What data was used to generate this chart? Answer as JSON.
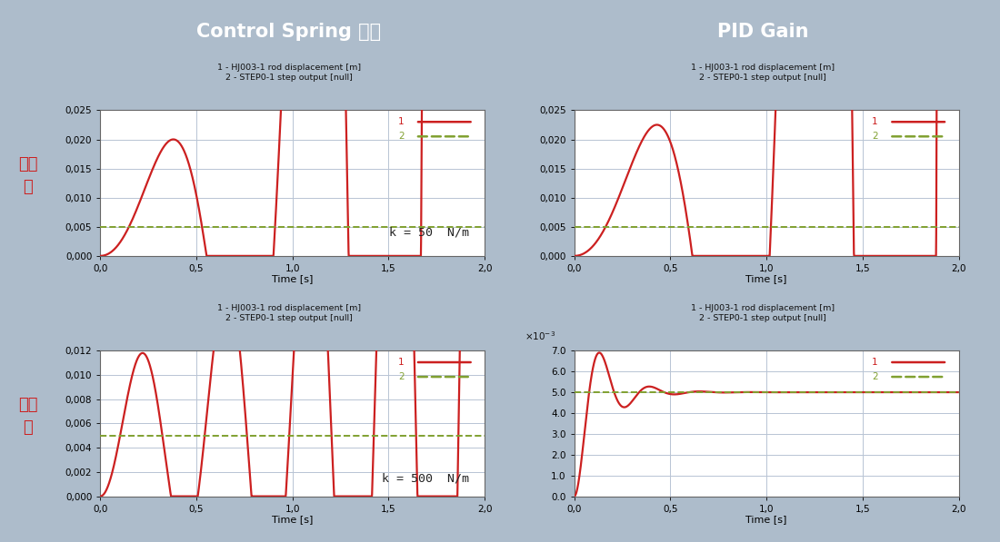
{
  "header_bg": "#3a5f8a",
  "header_text_color": "#ffffff",
  "col1_header": "Control Spring 상수",
  "col2_header": "PID Gain",
  "row1_label": "변경\n전",
  "row2_label": "변경\n후",
  "outer_bg": "#adbccb",
  "plot_bg": "#c8d4e0",
  "chart_bg": "#ffffff",
  "grid_color": "#b8c4d4",
  "red_color": "#cc2020",
  "green_color": "#80a030",
  "title_line1": "1 - HJ003-1 rod displacement [m]",
  "title_line2": "2 - STEP0-1 step output [null]",
  "xlabel": "Time [s]",
  "annotation_tl": "k = 50  N/m",
  "annotation_bl": "k = 500  N/m",
  "panel_tl": {
    "ylim": [
      0.0,
      0.025
    ],
    "yticks": [
      0.0,
      0.005,
      0.01,
      0.015,
      0.02,
      0.025
    ],
    "peak": 0.02,
    "peak_t": 0.38,
    "steady": 0.005,
    "sigma": 3.5,
    "omega": 5.5
  },
  "panel_tr": {
    "ylim": [
      0.0,
      0.025
    ],
    "yticks": [
      0.0,
      0.005,
      0.01,
      0.015,
      0.02,
      0.025
    ],
    "peak": 0.0225,
    "peak_t": 0.43,
    "steady": 0.005,
    "sigma": 4.5,
    "omega": 4.8
  },
  "panel_bl": {
    "ylim": [
      0.0,
      0.012
    ],
    "yticks": [
      0.0,
      0.002,
      0.004,
      0.006,
      0.008,
      0.01,
      0.012
    ],
    "peak": 0.0118,
    "peak_t": 0.22,
    "steady": 0.005,
    "sigma": 5.0,
    "omega": 9.5
  },
  "panel_br": {
    "ylim_scale": 0.001,
    "ylim": [
      0.0,
      7.0
    ],
    "yticks": [
      0.0,
      1.0,
      2.0,
      3.0,
      4.0,
      5.0,
      6.0,
      7.0
    ],
    "peak": 6.9,
    "peak_t": 0.13,
    "steady": 5.0,
    "sigma": 8.0,
    "omega": 16.0
  }
}
